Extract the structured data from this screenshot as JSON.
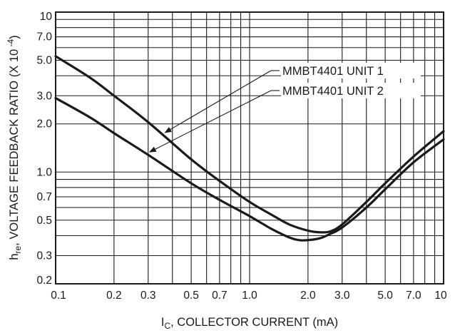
{
  "chart_data": {
    "type": "line",
    "title": "",
    "x_scale": "log",
    "y_scale": "log",
    "xlim": [
      0.1,
      10
    ],
    "ylim": [
      0.2,
      10
    ],
    "grid": true,
    "x_ticks": [
      {
        "value": 0.1,
        "label": "0.1"
      },
      {
        "value": 0.2,
        "label": "0.2"
      },
      {
        "value": 0.3,
        "label": "0.3"
      },
      {
        "value": 0.5,
        "label": "0.5"
      },
      {
        "value": 0.7,
        "label": "0.7"
      },
      {
        "value": 1.0,
        "label": "1.0"
      },
      {
        "value": 2.0,
        "label": "2.0"
      },
      {
        "value": 3.0,
        "label": "3.0"
      },
      {
        "value": 5.0,
        "label": "5.0"
      },
      {
        "value": 7.0,
        "label": "7.0"
      },
      {
        "value": 10,
        "label": "10"
      }
    ],
    "y_ticks": [
      {
        "value": 0.2,
        "label": "0.2"
      },
      {
        "value": 0.3,
        "label": "0.3"
      },
      {
        "value": 0.5,
        "label": "0.5"
      },
      {
        "value": 0.7,
        "label": "0.7"
      },
      {
        "value": 1.0,
        "label": "1.0"
      },
      {
        "value": 2.0,
        "label": "2.0"
      },
      {
        "value": 3.0,
        "label": "3.0"
      },
      {
        "value": 5.0,
        "label": "5.0"
      },
      {
        "value": 7.0,
        "label": "7.0"
      },
      {
        "value": 10,
        "label": "10"
      }
    ],
    "xlabel": {
      "main": "I",
      "sub": "C",
      "rest": ", COLLECTOR CURRENT (mA)"
    },
    "ylabel": {
      "main": "h",
      "sub": "re",
      "rest": ", VOLTAGE FEEDBACK RATIO (X 10",
      "sup": " -4",
      "close": ")"
    },
    "series": [
      {
        "name": "MMBT4401 UNIT 1",
        "x": [
          0.1,
          0.15,
          0.2,
          0.3,
          0.5,
          0.7,
          1.0,
          1.3,
          1.6,
          2.0,
          2.3,
          2.6,
          3.0,
          4.0,
          5.0,
          7.0,
          10
        ],
        "y": [
          5.3,
          3.9,
          3.0,
          2.05,
          1.2,
          0.88,
          0.65,
          0.54,
          0.47,
          0.43,
          0.42,
          0.425,
          0.47,
          0.65,
          0.85,
          1.25,
          1.8
        ]
      },
      {
        "name": "MMBT4401 UNIT 2",
        "x": [
          0.1,
          0.15,
          0.2,
          0.3,
          0.5,
          0.7,
          1.0,
          1.3,
          1.6,
          1.8,
          2.0,
          2.3,
          2.6,
          3.0,
          4.0,
          5.0,
          7.0,
          10
        ],
        "y": [
          2.9,
          2.2,
          1.75,
          1.28,
          0.85,
          0.67,
          0.53,
          0.44,
          0.39,
          0.375,
          0.375,
          0.385,
          0.41,
          0.45,
          0.6,
          0.78,
          1.15,
          1.6
        ]
      }
    ],
    "annotations": [
      {
        "text": "MMBT4401 UNIT 1",
        "series": 0,
        "arrow_to_x": 0.36
      },
      {
        "text": "MMBT4401 UNIT 2",
        "series": 1,
        "arrow_to_x": 0.3
      }
    ]
  }
}
